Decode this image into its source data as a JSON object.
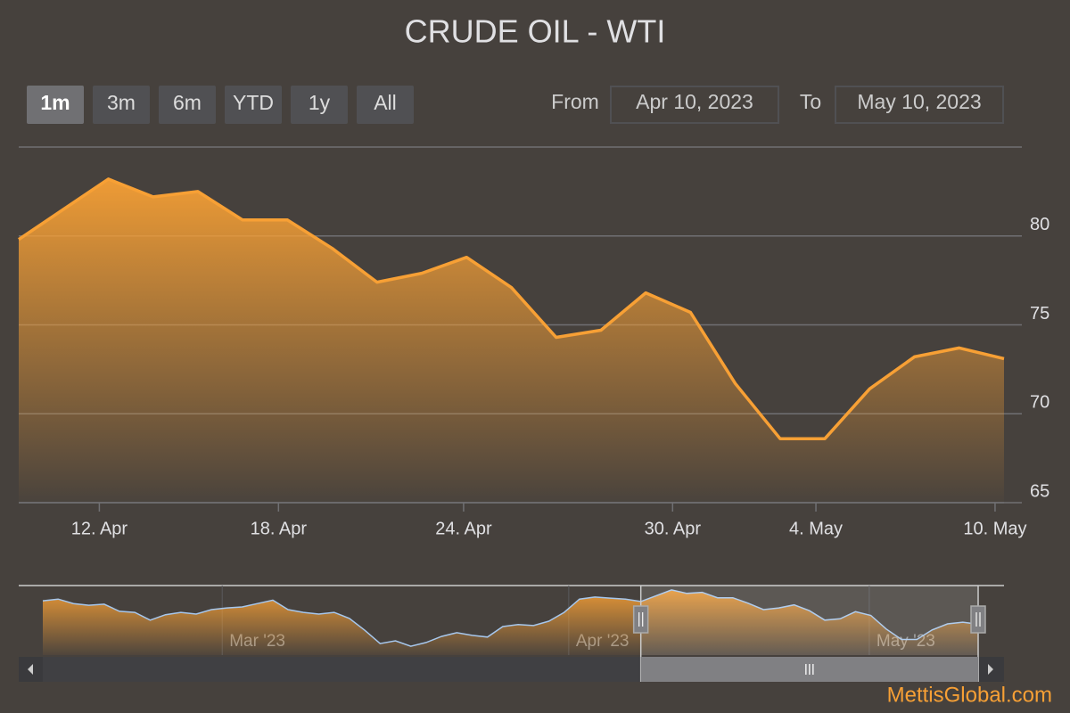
{
  "chart_data": {
    "type": "area",
    "title": "CRUDE OIL - WTI",
    "buttons": [
      "1m",
      "3m",
      "6m",
      "YTD",
      "1y",
      "All"
    ],
    "selected_button": "1m",
    "from_label": "From",
    "from": "Apr 10, 2023",
    "to_label": "To",
    "to": "May 10, 2023",
    "color": "#f7a035",
    "x": [
      "2023-04-10",
      "2023-04-11",
      "2023-04-12",
      "2023-04-13",
      "2023-04-14",
      "2023-04-17",
      "2023-04-18",
      "2023-04-19",
      "2023-04-20",
      "2023-04-21",
      "2023-04-24",
      "2023-04-25",
      "2023-04-26",
      "2023-04-27",
      "2023-04-28",
      "2023-05-01",
      "2023-05-02",
      "2023-05-03",
      "2023-05-04",
      "2023-05-05",
      "2023-05-08",
      "2023-05-09",
      "2023-05-10"
    ],
    "values": [
      79.8,
      81.5,
      83.2,
      82.2,
      82.5,
      80.9,
      80.9,
      79.3,
      77.4,
      77.9,
      78.8,
      77.1,
      74.3,
      74.7,
      76.8,
      75.7,
      71.7,
      68.6,
      68.6,
      71.4,
      73.2,
      73.7,
      73.1
    ],
    "ylim": [
      65,
      85
    ],
    "yticks": [
      65,
      70,
      75,
      80
    ],
    "grid": true,
    "xticks": [
      {
        "value": "2023-04-12",
        "label": "12. Apr"
      },
      {
        "value": "2023-04-18",
        "label": "18. Apr"
      },
      {
        "value": "2023-04-24",
        "label": "24. Apr"
      },
      {
        "value": "2023-04-30",
        "label": "30. Apr"
      },
      {
        "value": "2023-05-04",
        "label": "4. May"
      },
      {
        "value": "2023-05-10",
        "label": "10. May"
      }
    ],
    "navigator": {
      "values": [
        80.0,
        80.5,
        79.2,
        78.7,
        79.0,
        76.9,
        76.6,
        74.3,
        75.9,
        76.6,
        76.1,
        77.4,
        77.9,
        78.2,
        79.2,
        80.2,
        77.4,
        76.6,
        76.1,
        76.6,
        74.8,
        71.3,
        67.4,
        68.2,
        66.6,
        67.7,
        69.5,
        70.6,
        69.8,
        69.3,
        72.4,
        73.0,
        72.7,
        74.0,
        76.6,
        80.5,
        81.1,
        80.8,
        80.5
      ],
      "ylim": [
        64,
        84.5
      ],
      "xticks": [
        {
          "value": 11.7,
          "label": "Mar '23"
        },
        {
          "value": 34.3,
          "label": "Apr '23"
        },
        {
          "value": 53.9,
          "label": "May '23"
        }
      ]
    },
    "credit": "MettisGlobal.com"
  }
}
